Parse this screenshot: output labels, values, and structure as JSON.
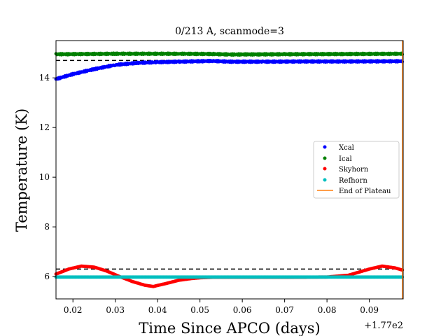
{
  "chart_data": {
    "type": "scatter",
    "title": "0/213 A, scanmode=3",
    "xlabel": "Time Since APCO (days)",
    "ylabel": "Temperature (K)",
    "x_offset_label": "+1.77e2",
    "xlim": [
      177.016,
      177.098
    ],
    "ylim": [
      5.1,
      15.5
    ],
    "x_ticks": [
      177.02,
      177.03,
      177.04,
      177.05,
      177.06,
      177.07,
      177.08,
      177.09
    ],
    "x_tick_labels": [
      "0.02",
      "0.03",
      "0.04",
      "0.05",
      "0.06",
      "0.07",
      "0.08",
      "0.09"
    ],
    "y_ticks": [
      6,
      8,
      10,
      12,
      14
    ],
    "y_tick_labels": [
      "6",
      "8",
      "10",
      "12",
      "14"
    ],
    "gap": [
      177.0533,
      177.057
    ],
    "legend_position": "center-right",
    "series": [
      {
        "name": "Xcal",
        "color": "#0000ff",
        "points": [
          [
            177.016,
            13.95
          ],
          [
            177.02,
            14.15
          ],
          [
            177.025,
            14.35
          ],
          [
            177.03,
            14.52
          ],
          [
            177.035,
            14.6
          ],
          [
            177.04,
            14.63
          ],
          [
            177.045,
            14.65
          ],
          [
            177.05,
            14.67
          ],
          [
            177.053,
            14.68
          ],
          [
            177.057,
            14.65
          ],
          [
            177.065,
            14.65
          ],
          [
            177.075,
            14.66
          ],
          [
            177.085,
            14.66
          ],
          [
            177.098,
            14.67
          ]
        ]
      },
      {
        "name": "Ical",
        "color": "#008000",
        "points": [
          [
            177.016,
            14.95
          ],
          [
            177.03,
            14.97
          ],
          [
            177.045,
            14.97
          ],
          [
            177.053,
            14.96
          ],
          [
            177.057,
            14.94
          ],
          [
            177.07,
            14.95
          ],
          [
            177.085,
            14.96
          ],
          [
            177.098,
            14.97
          ]
        ]
      },
      {
        "name": "Skyhorn",
        "color": "#ff0000",
        "points": [
          [
            177.016,
            6.1
          ],
          [
            177.019,
            6.3
          ],
          [
            177.022,
            6.42
          ],
          [
            177.025,
            6.38
          ],
          [
            177.028,
            6.22
          ],
          [
            177.031,
            6.0
          ],
          [
            177.034,
            5.8
          ],
          [
            177.037,
            5.65
          ],
          [
            177.039,
            5.6
          ],
          [
            177.042,
            5.72
          ],
          [
            177.045,
            5.85
          ],
          [
            177.048,
            5.92
          ],
          [
            177.05,
            5.95
          ],
          [
            177.053,
            5.97
          ],
          [
            177.057,
            5.97
          ],
          [
            177.07,
            5.97
          ],
          [
            177.08,
            5.98
          ],
          [
            177.085,
            6.05
          ],
          [
            177.09,
            6.3
          ],
          [
            177.093,
            6.42
          ],
          [
            177.096,
            6.35
          ],
          [
            177.098,
            6.25
          ]
        ]
      },
      {
        "name": "Refhorn",
        "color": "#00bfbf",
        "points": [
          [
            177.016,
            5.98
          ],
          [
            177.053,
            5.98
          ],
          [
            177.057,
            5.98
          ],
          [
            177.098,
            5.98
          ]
        ]
      }
    ],
    "end_of_plateau": {
      "name": "End of Plateau",
      "color": "#ff7f0e",
      "x": 177.098
    },
    "reference_lines": [
      14.7,
      15.0,
      6.3
    ]
  }
}
